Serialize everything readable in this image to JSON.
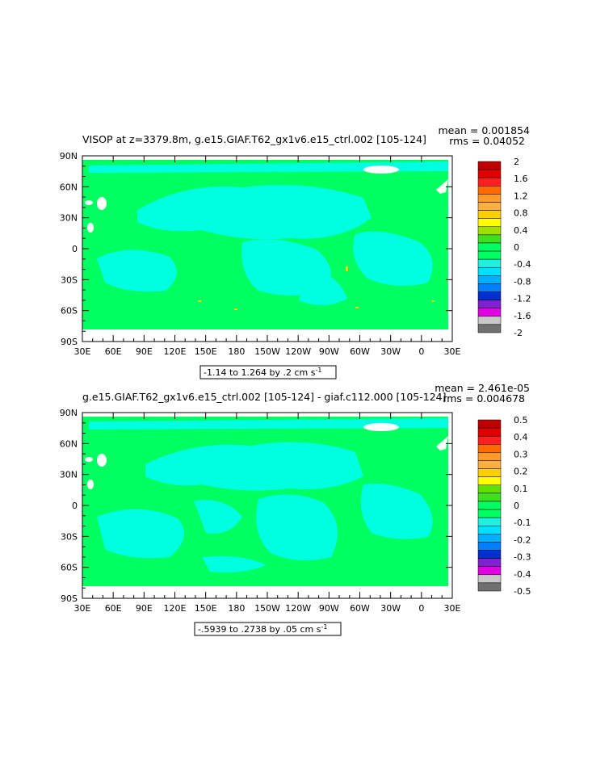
{
  "chart_data": [
    {
      "type": "heatmap",
      "title": "VISOP at z=3379.8m, g.e15.GIAF.T62_gx1v6.e15_ctrl.002 [105-124]",
      "stats": {
        "mean": "mean = 0.001854",
        "rms": "rms = 0.04052"
      },
      "x_ticks": [
        "30E",
        "60E",
        "90E",
        "120E",
        "150E",
        "180",
        "150W",
        "120W",
        "90W",
        "60W",
        "30W",
        "0",
        "30E"
      ],
      "y_ticks": [
        "90N",
        "60N",
        "30N",
        "0",
        "30S",
        "60S",
        "90S"
      ],
      "xlim": [
        30,
        390
      ],
      "ylim": [
        -90,
        90
      ],
      "range_label": {
        "text": "-1.14 to 1.264 by .2 cm s",
        "sup": "-1"
      },
      "colorbar": {
        "labels": [
          "2",
          "1.6",
          "1.2",
          "0.8",
          "0.4",
          "0",
          "-0.4",
          "-0.8",
          "-1.2",
          "-1.6",
          "-2"
        ],
        "colors": [
          "#c00000",
          "#e00000",
          "#ff2020",
          "#ff6a00",
          "#ff9a2a",
          "#ffb040",
          "#ffd000",
          "#ffff00",
          "#a0e000",
          "#40e020",
          "#00ff60",
          "#00ff60",
          "#20f0e0",
          "#00e0ff",
          "#00b0ff",
          "#0080ff",
          "#0030d0",
          "#8020d0",
          "#e000e0",
          "#c8c8c8",
          "#707070"
        ]
      }
    },
    {
      "type": "heatmap",
      "title": "g.e15.GIAF.T62_gx1v6.e15_ctrl.002 [105-124] - giaf.c112.000 [105-124]",
      "stats": {
        "mean": "mean = 2.461e-05",
        "rms": "rms = 0.004678"
      },
      "x_ticks": [
        "30E",
        "60E",
        "90E",
        "120E",
        "150E",
        "180",
        "150W",
        "120W",
        "90W",
        "60W",
        "30W",
        "0",
        "30E"
      ],
      "y_ticks": [
        "90N",
        "60N",
        "30N",
        "0",
        "30S",
        "60S",
        "90S"
      ],
      "xlim": [
        30,
        390
      ],
      "ylim": [
        -90,
        90
      ],
      "range_label": {
        "text": "-.5939 to .2738 by .05 cm s",
        "sup": "-1"
      },
      "colorbar": {
        "labels": [
          "0.5",
          "0.4",
          "0.3",
          "0.2",
          "0.1",
          "0",
          "-0.1",
          "-0.2",
          "-0.3",
          "-0.4",
          "-0.5"
        ],
        "colors": [
          "#c00000",
          "#e00000",
          "#ff2020",
          "#ff6a00",
          "#ff9a2a",
          "#ffb040",
          "#ffd000",
          "#ffff00",
          "#60e000",
          "#40e020",
          "#00ff60",
          "#00ff60",
          "#20f0e0",
          "#00e0ff",
          "#00b0ff",
          "#0080ff",
          "#0030d0",
          "#8020d0",
          "#e000e0",
          "#c8c8c8",
          "#707070"
        ]
      }
    }
  ],
  "palette": {
    "ocean_zero": "#00ff60",
    "ocean_neg": "#00ffe0",
    "land": "#ffffff",
    "accent": "#ffd000"
  }
}
